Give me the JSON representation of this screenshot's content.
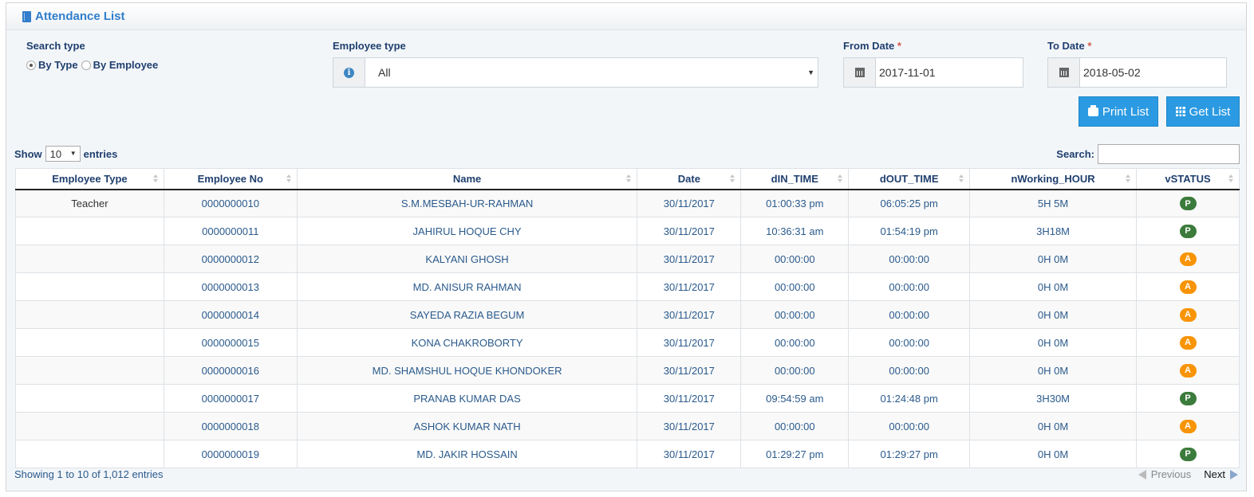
{
  "header": {
    "title": "Attendance List"
  },
  "filters": {
    "search_type_label": "Search type",
    "radio_by_type": "By Type",
    "radio_by_employee": "By Employee",
    "employee_type_label": "Employee type",
    "employee_type_value": "All",
    "from_date_label": "From Date",
    "from_date_value": "2017-11-01",
    "to_date_label": "To Date",
    "to_date_value": "2018-05-02",
    "required_mark": "*"
  },
  "buttons": {
    "print": "Print List",
    "get": "Get List"
  },
  "table_controls": {
    "show": "Show",
    "length_value": "10",
    "entries": "entries",
    "search_label": "Search:"
  },
  "table": {
    "columns": [
      "Employee Type",
      "Employee No",
      "Name",
      "Date",
      "dIN_TIME",
      "dOUT_TIME",
      "nWorking_HOUR",
      "vSTATUS"
    ],
    "rows": [
      {
        "type": "Teacher",
        "no": "0000000010",
        "name": "S.M.MESBAH-UR-RAHMAN",
        "date": "30/11/2017",
        "in": "01:00:33 pm",
        "out": "06:05:25 pm",
        "hours": "5H 5M",
        "status": "P"
      },
      {
        "type": "",
        "no": "0000000011",
        "name": "JAHIRUL HOQUE CHY",
        "date": "30/11/2017",
        "in": "10:36:31 am",
        "out": "01:54:19 pm",
        "hours": "3H18M",
        "status": "P"
      },
      {
        "type": "",
        "no": "0000000012",
        "name": "KALYANI GHOSH",
        "date": "30/11/2017",
        "in": "00:00:00",
        "out": "00:00:00",
        "hours": "0H 0M",
        "status": "A"
      },
      {
        "type": "",
        "no": "0000000013",
        "name": "MD. ANISUR RAHMAN",
        "date": "30/11/2017",
        "in": "00:00:00",
        "out": "00:00:00",
        "hours": "0H 0M",
        "status": "A"
      },
      {
        "type": "",
        "no": "0000000014",
        "name": "SAYEDA RAZIA BEGUM",
        "date": "30/11/2017",
        "in": "00:00:00",
        "out": "00:00:00",
        "hours": "0H 0M",
        "status": "A"
      },
      {
        "type": "",
        "no": "0000000015",
        "name": "KONA CHAKROBORTY",
        "date": "30/11/2017",
        "in": "00:00:00",
        "out": "00:00:00",
        "hours": "0H 0M",
        "status": "A"
      },
      {
        "type": "",
        "no": "0000000016",
        "name": "MD. SHAMSHUL HOQUE KHONDOKER",
        "date": "30/11/2017",
        "in": "00:00:00",
        "out": "00:00:00",
        "hours": "0H 0M",
        "status": "A"
      },
      {
        "type": "",
        "no": "0000000017",
        "name": "PRANAB KUMAR DAS",
        "date": "30/11/2017",
        "in": "09:54:59 am",
        "out": "01:24:48 pm",
        "hours": "3H30M",
        "status": "P"
      },
      {
        "type": "",
        "no": "0000000018",
        "name": "ASHOK KUMAR NATH",
        "date": "30/11/2017",
        "in": "00:00:00",
        "out": "00:00:00",
        "hours": "0H 0M",
        "status": "A"
      },
      {
        "type": "",
        "no": "0000000019",
        "name": "MD. JAKIR HOSSAIN",
        "date": "30/11/2017",
        "in": "01:29:27 pm",
        "out": "01:29:27 pm",
        "hours": "0H 0M",
        "status": "P"
      }
    ]
  },
  "footer": {
    "info": "Showing 1 to 10 of 1,012 entries",
    "previous": "Previous",
    "next": "Next"
  },
  "colors": {
    "accent": "#307ecc",
    "button": "#2b9ae2",
    "present": "#3b7b3b",
    "absent": "#f89406"
  }
}
